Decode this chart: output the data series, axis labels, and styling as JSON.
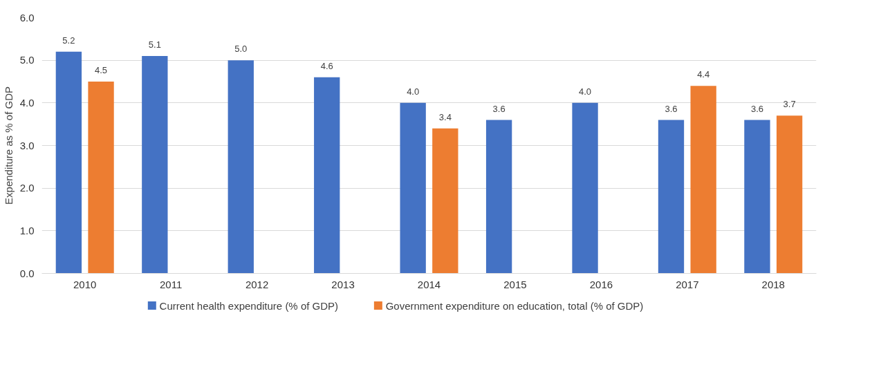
{
  "chart_data": {
    "type": "bar",
    "ylabel": "Expenditure as % of GDP",
    "categories": [
      "2010",
      "2011",
      "2012",
      "2013",
      "2014",
      "2015",
      "2016",
      "2017",
      "2018"
    ],
    "series": [
      {
        "name": "Current health expenditure (% of GDP)",
        "color": "#4472c4",
        "values": [
          5.2,
          5.1,
          5.0,
          4.6,
          4.0,
          3.6,
          4.0,
          3.6,
          3.6
        ],
        "value_labels": [
          "5.2",
          "5.1",
          "5.0",
          "4.6",
          "4.0",
          "3.6",
          "4.0",
          "3.6",
          "3.6"
        ]
      },
      {
        "name": "Government expenditure on education, total (% of GDP)",
        "color": "#ed7d31",
        "values": [
          4.5,
          null,
          null,
          null,
          3.4,
          null,
          null,
          4.4,
          3.7
        ],
        "value_labels": [
          "4.5",
          null,
          null,
          null,
          "3.4",
          null,
          null,
          "4.4",
          "3.7"
        ]
      }
    ],
    "ylim": [
      0,
      6
    ],
    "yticks": [
      {
        "value": 0,
        "label": "0.0"
      },
      {
        "value": 1,
        "label": "1.0"
      },
      {
        "value": 2,
        "label": "2.0"
      },
      {
        "value": 3,
        "label": "3.0"
      },
      {
        "value": 4,
        "label": "4.0"
      },
      {
        "value": 5,
        "label": "5.0"
      },
      {
        "value": 6,
        "label": "6.0"
      }
    ],
    "grid": "y",
    "legend": "bottom"
  }
}
